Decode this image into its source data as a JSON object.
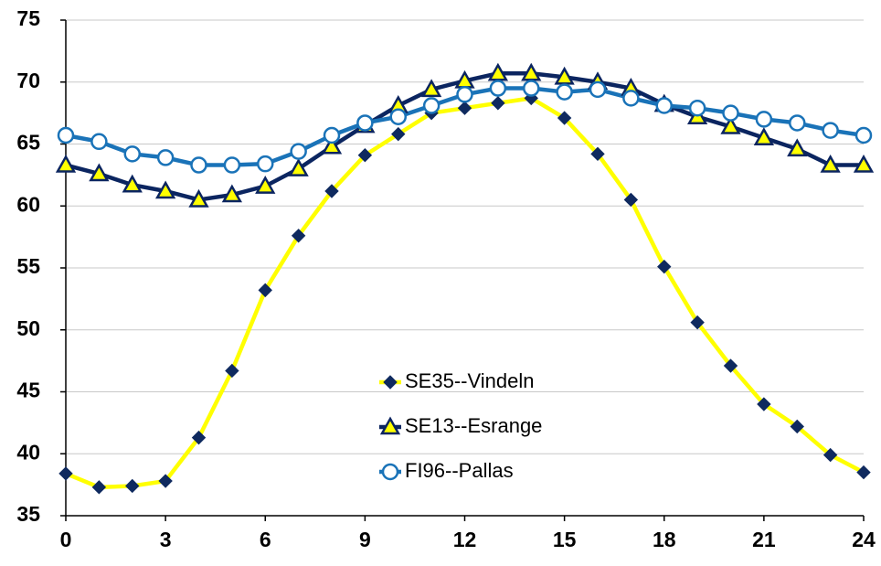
{
  "chart_data": {
    "type": "line",
    "x": [
      0,
      1,
      2,
      3,
      4,
      5,
      6,
      7,
      8,
      9,
      10,
      11,
      12,
      13,
      14,
      15,
      16,
      17,
      18,
      19,
      20,
      21,
      22,
      23,
      24
    ],
    "series": [
      {
        "name": "SE35--Vindeln",
        "color": "#ffff00",
        "marker": "diamond",
        "marker_color": "#0f2a5f",
        "values": [
          38.4,
          37.3,
          37.4,
          37.8,
          41.3,
          46.7,
          53.2,
          57.6,
          61.2,
          64.1,
          65.8,
          67.5,
          67.9,
          68.3,
          68.7,
          67.1,
          64.2,
          60.5,
          55.1,
          50.6,
          47.1,
          44.0,
          42.2,
          39.9,
          38.5
        ]
      },
      {
        "name": "SE13--Esrange",
        "color": "#0b2560",
        "marker": "triangle",
        "marker_color": "#ffff00",
        "values": [
          63.3,
          62.6,
          61.7,
          61.2,
          60.5,
          60.9,
          61.6,
          63.0,
          64.8,
          66.5,
          68.1,
          69.4,
          70.1,
          70.7,
          70.7,
          70.4,
          70.0,
          69.5,
          68.2,
          67.2,
          66.4,
          65.5,
          64.6,
          63.3,
          63.3
        ]
      },
      {
        "name": "FI96--Pallas",
        "color": "#1a73b8",
        "marker": "circle",
        "marker_color": "#ffffff",
        "values": [
          65.7,
          65.2,
          64.2,
          63.9,
          63.3,
          63.3,
          63.4,
          64.4,
          65.7,
          66.7,
          67.2,
          68.1,
          69.0,
          69.5,
          69.5,
          69.2,
          69.4,
          68.7,
          68.1,
          67.9,
          67.5,
          67.0,
          66.7,
          66.1,
          65.7
        ]
      }
    ],
    "xlim": [
      0,
      24
    ],
    "xticks": [
      0,
      3,
      6,
      9,
      12,
      15,
      18,
      21,
      24
    ],
    "ylim": [
      35,
      75
    ],
    "yticks": [
      35,
      40,
      45,
      50,
      55,
      60,
      65,
      70,
      75
    ],
    "grid": true,
    "legend": "center"
  }
}
